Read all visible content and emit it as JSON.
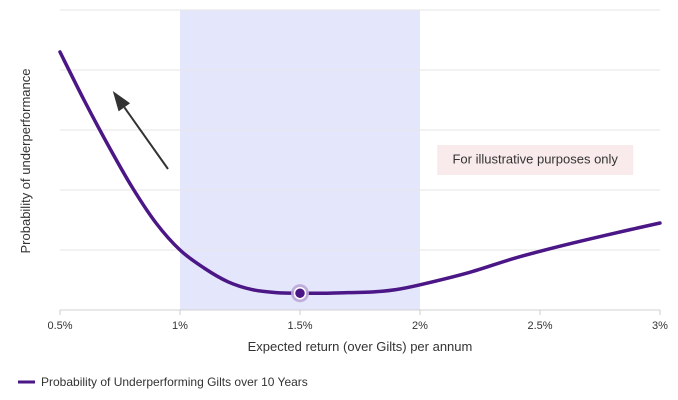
{
  "chart_data": {
    "type": "line",
    "xlabel": "Expected return (over Gilts) per annum",
    "ylabel": "Probability of underperformance",
    "x_tick_labels": [
      "0.5%",
      "1%",
      "1.5%",
      "2%",
      "2.5%",
      "3%"
    ],
    "x_ticks": [
      0.5,
      1.0,
      1.5,
      2.0,
      2.5,
      3.0
    ],
    "xlim": [
      0.5,
      3.0
    ],
    "ylim": [
      0,
      5
    ],
    "y_tick_labels_shown": false,
    "grid": "horizontal",
    "highlight_band": {
      "x_from": 1.0,
      "x_to": 2.0,
      "color": "#e4e6fc"
    },
    "series": [
      {
        "name": "Probability of Underperforming Gilts over 10 Years",
        "color": "#4b1685",
        "x": [
          0.5,
          0.6,
          0.7,
          0.8,
          0.9,
          1.0,
          1.1,
          1.2,
          1.3,
          1.4,
          1.5,
          1.6,
          1.7,
          1.8,
          1.9,
          2.0,
          2.2,
          2.4,
          2.6,
          2.8,
          3.0
        ],
        "y": [
          4.3,
          3.5,
          2.75,
          2.05,
          1.45,
          1.0,
          0.7,
          0.47,
          0.34,
          0.29,
          0.28,
          0.28,
          0.29,
          0.3,
          0.34,
          0.42,
          0.62,
          0.87,
          1.08,
          1.27,
          1.45
        ]
      }
    ],
    "highlight_point": {
      "x": 1.5,
      "y": 0.28
    },
    "arrow": {
      "from": {
        "x": 0.95,
        "y": 2.35
      },
      "to": {
        "x": 0.72,
        "y": 3.65
      }
    },
    "annotation": {
      "text": "For illustrative purposes only",
      "x": 2.48,
      "y": 2.5,
      "background": "#f9ebeb"
    },
    "legend": {
      "position": "bottom-left"
    }
  }
}
